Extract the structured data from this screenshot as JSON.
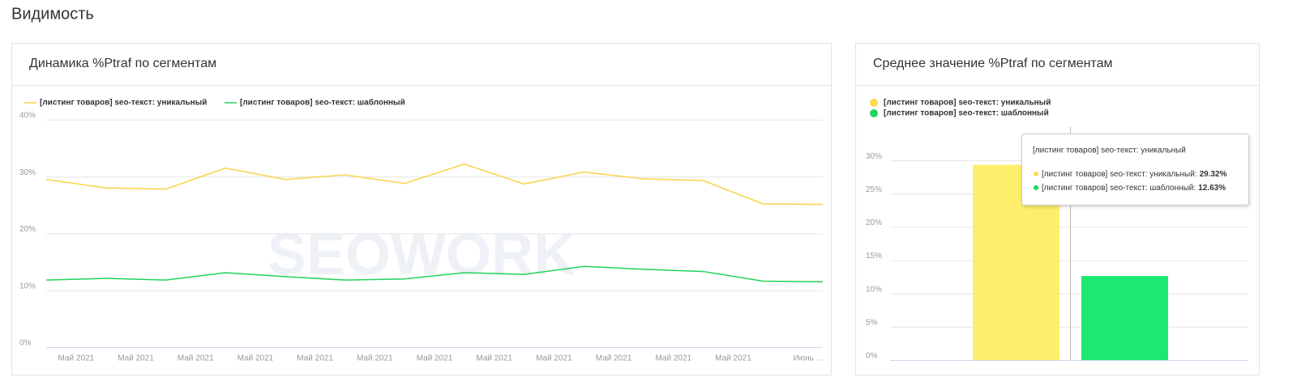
{
  "header": {
    "title": "Видимость"
  },
  "chart_data": [
    {
      "type": "line",
      "title": "Динамика %Ptraf по сегментам",
      "watermark": "SEOWORK",
      "categories": [
        "Май 2021",
        "Май 2021",
        "Май 2021",
        "Май 2021",
        "Май 2021",
        "Май 2021",
        "Май 2021",
        "Май 2021",
        "Май 2021",
        "Май 2021",
        "Май 2021",
        "Май 2021",
        null,
        "Июнь ..."
      ],
      "series": [
        {
          "name": "[листинг товаров] seo-текст: уникальный",
          "color": "#f8d449",
          "values": [
            29.5,
            28,
            27.8,
            31.5,
            29.5,
            30.3,
            28.8,
            32.2,
            28.7,
            30.8,
            29.6,
            29.3,
            25.2,
            25.1
          ]
        },
        {
          "name": "[листинг товаров] seo-текст: шаблонный",
          "color": "#22d35a",
          "values": [
            11.8,
            12.1,
            11.8,
            13.1,
            12.4,
            11.8,
            12.0,
            13.1,
            12.8,
            14.2,
            13.7,
            13.3,
            11.6,
            11.5
          ]
        }
      ],
      "ylim": [
        0,
        40
      ],
      "yticks": [
        {
          "value": 0,
          "label": "0%"
        },
        {
          "value": 10,
          "label": "10%"
        },
        {
          "value": 20,
          "label": "20%"
        },
        {
          "value": 30,
          "label": "30%"
        },
        {
          "value": 40,
          "label": "40%"
        }
      ],
      "grid": true
    },
    {
      "type": "bar",
      "title": "Среднее значение %Ptraf по сегментам",
      "series": [
        {
          "name": "[листинг товаров] seo-текст: уникальный",
          "color": "#fdee6b",
          "legend_color": "#ffd84d",
          "values": [
            29.32
          ],
          "value_labels": [
            "29.32%"
          ]
        },
        {
          "name": "[листинг товаров] seo-текст: шаблонный",
          "color": "#1de870",
          "legend_color": "#1fd65f",
          "values": [
            12.63
          ],
          "value_labels": [
            "12.63%"
          ]
        }
      ],
      "ylim": [
        0,
        35
      ],
      "yticks": [
        {
          "value": 0,
          "label": "0%"
        },
        {
          "value": 5,
          "label": "5%"
        },
        {
          "value": 10,
          "label": "10%"
        },
        {
          "value": 15,
          "label": "15%"
        },
        {
          "value": 20,
          "label": "20%"
        },
        {
          "value": 25,
          "label": "25%"
        },
        {
          "value": 30,
          "label": "30%"
        }
      ],
      "grid": true,
      "tooltip": {
        "title": "[листинг товаров] seo-текст: уникальный",
        "rows": [
          "[листинг товаров] seo-текст: уникальный:",
          "[листинг товаров] seo-текст: шаблонный:"
        ]
      }
    }
  ]
}
